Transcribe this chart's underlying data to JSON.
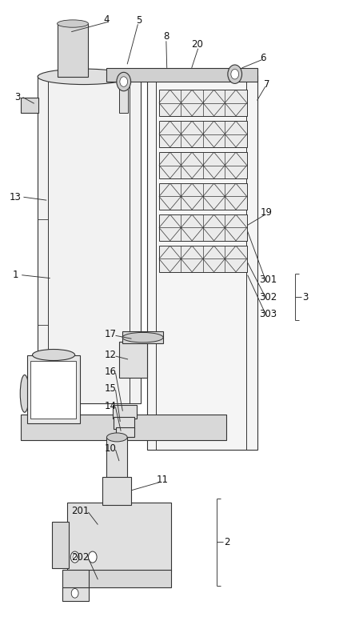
{
  "bg_color": "#ffffff",
  "line_color": "#333333",
  "fig_width": 4.44,
  "fig_height": 7.81,
  "dpi": 100
}
